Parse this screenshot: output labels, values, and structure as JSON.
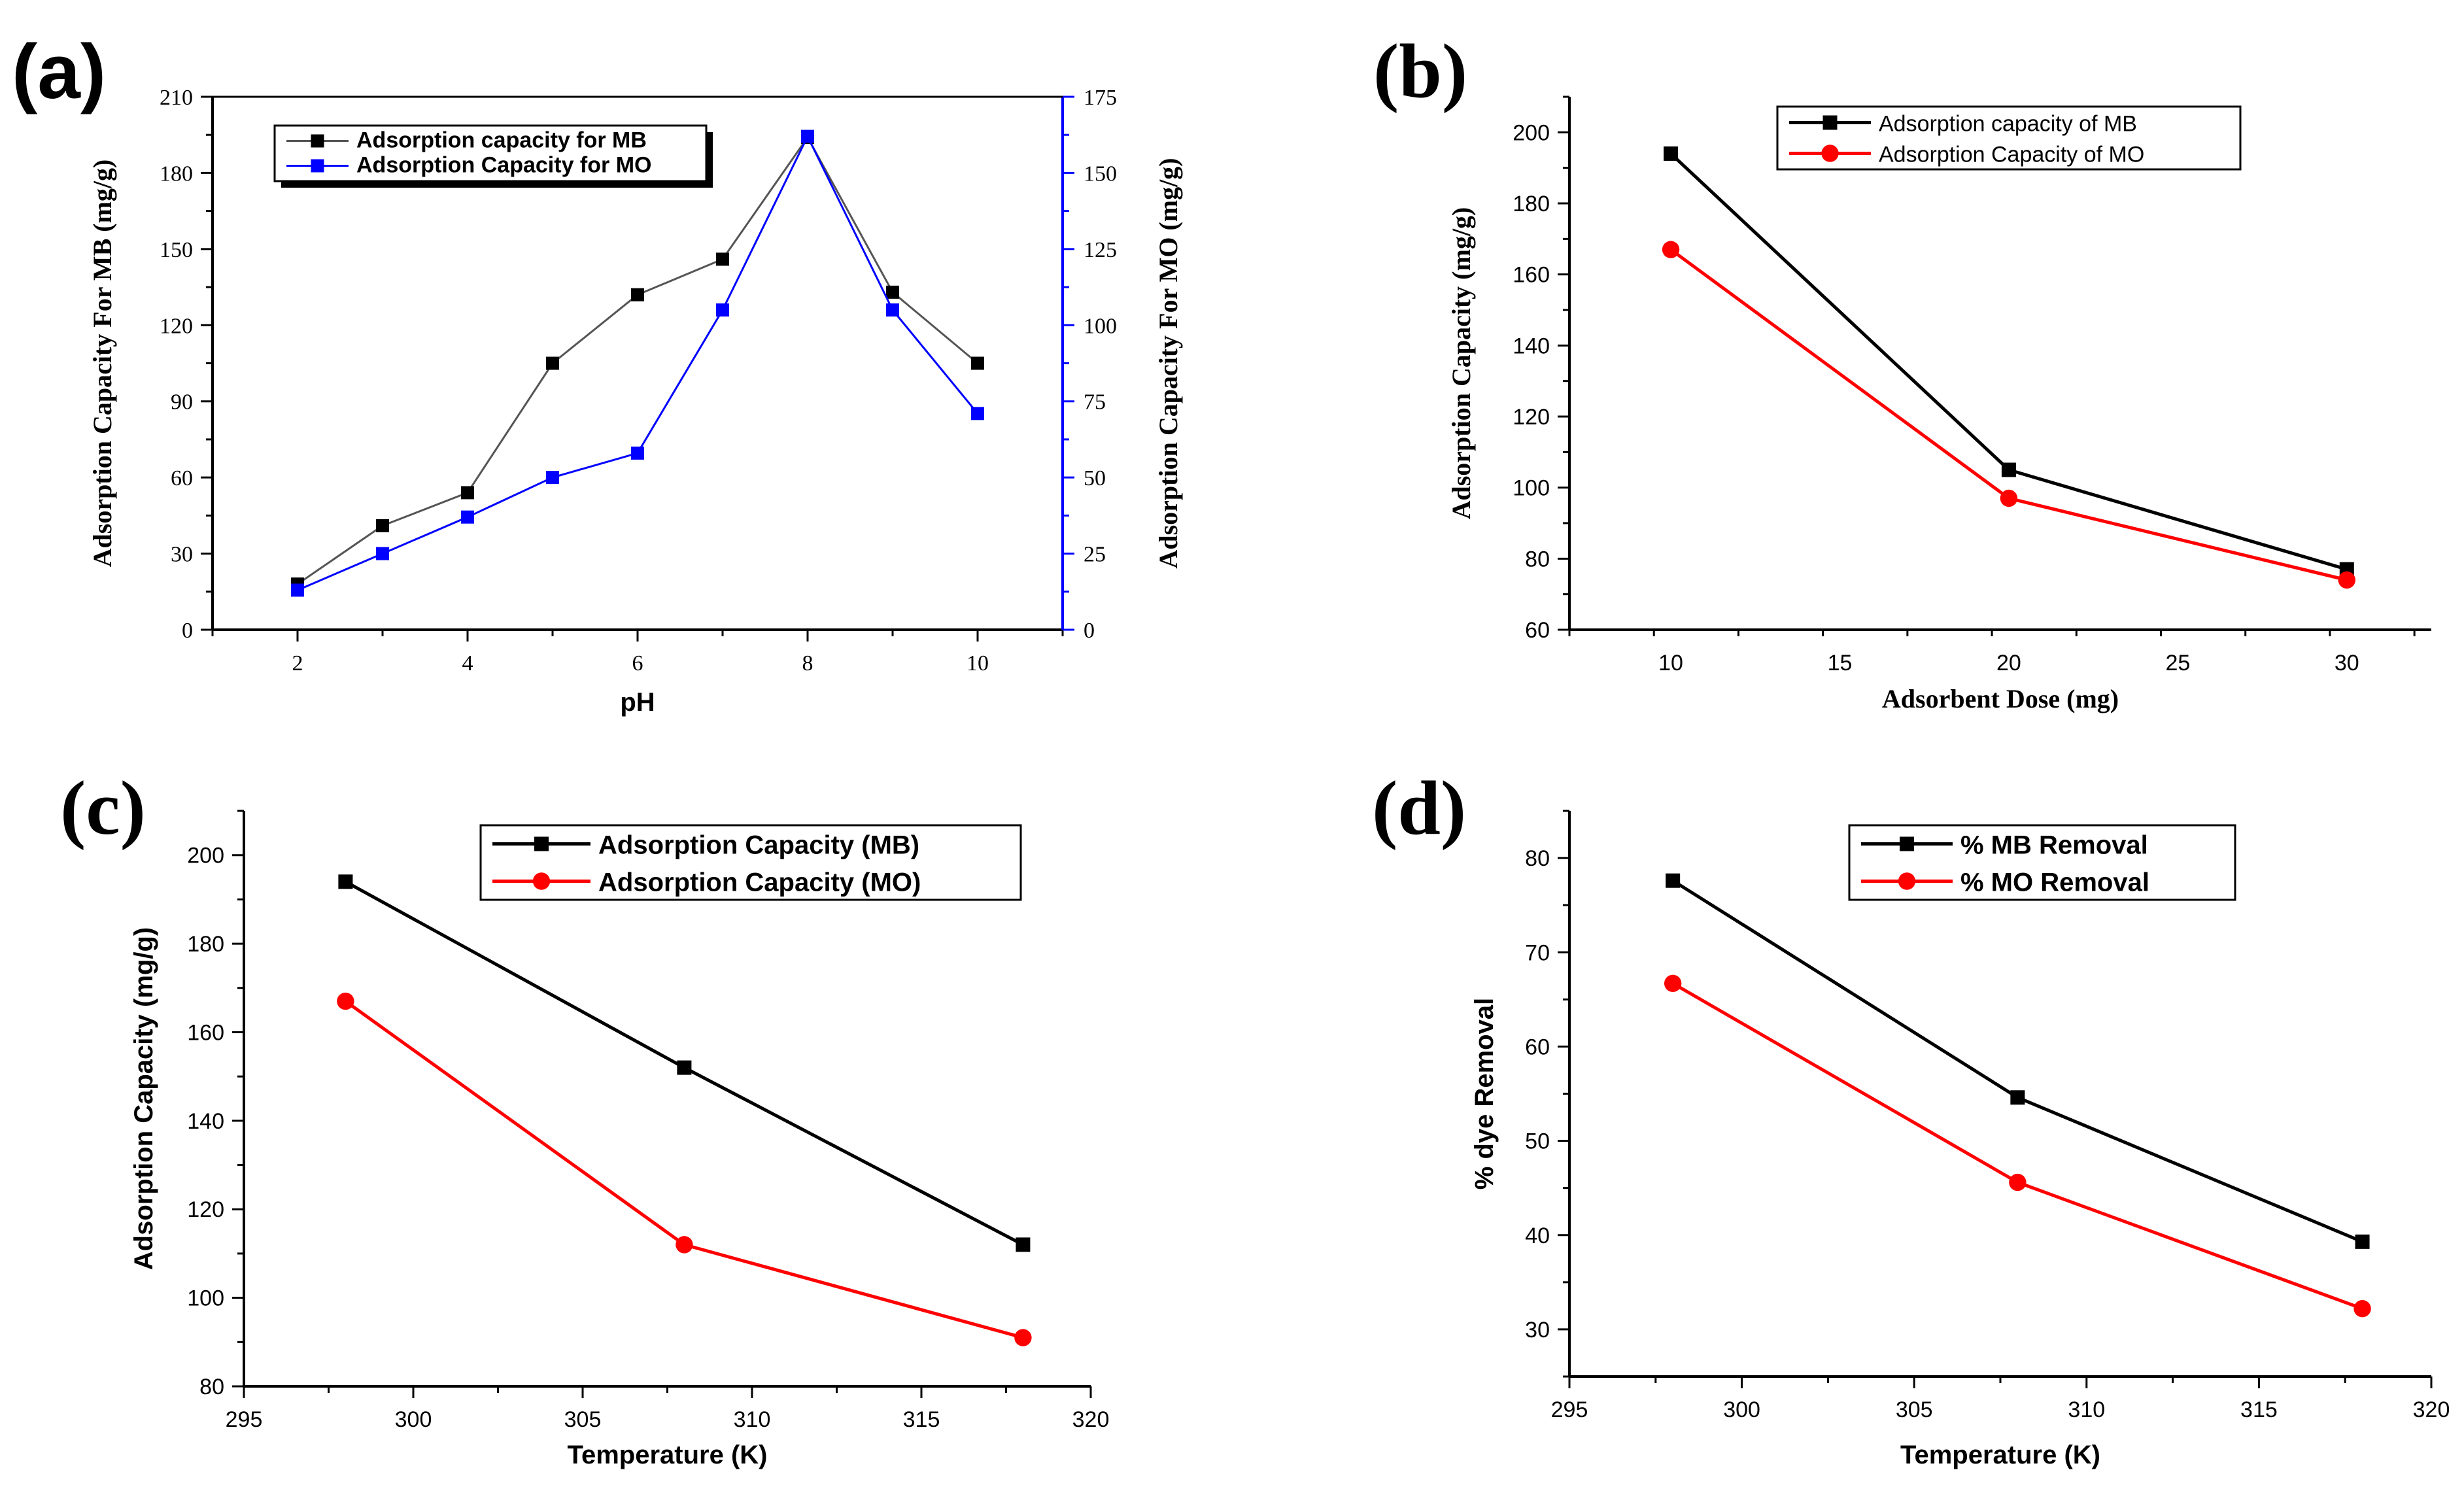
{
  "chart_data": [
    {
      "panel": "(a)",
      "type": "line",
      "x": [
        2,
        3,
        4,
        5,
        6,
        7,
        8,
        9,
        10
      ],
      "xlabel": "pH",
      "xlim": [
        1,
        11
      ],
      "xticks": [
        2,
        4,
        6,
        8,
        10
      ],
      "ylabel_left": "Adsorption Capacity For  MB (mg/g)",
      "ylim_left": [
        0,
        210
      ],
      "yticks_left": [
        0,
        30,
        60,
        90,
        120,
        150,
        180,
        210
      ],
      "ylabel_right": "Adsorption Capacity For MO (mg/g)",
      "ylim_right": [
        0,
        175
      ],
      "yticks_right": [
        0,
        25,
        50,
        75,
        100,
        125,
        150,
        175
      ],
      "legend_position": "top-left",
      "series": [
        {
          "name": "Adsorption capacity for MB",
          "axis": "left",
          "color": "#000000",
          "marker": "square",
          "values": [
            18,
            41,
            54,
            105,
            132,
            146,
            194,
            133,
            105
          ]
        },
        {
          "name": "Adsorption Capacity for MO",
          "axis": "right",
          "color": "#0000ff",
          "marker": "square",
          "values": [
            13,
            25,
            37,
            50,
            58,
            105,
            162,
            105,
            71
          ]
        }
      ]
    },
    {
      "panel": "(b)",
      "type": "line",
      "x": [
        10,
        20,
        30
      ],
      "xlabel": "Adsorbent Dose (mg)",
      "xlim": [
        7,
        32.5
      ],
      "xticks": [
        10,
        15,
        20,
        25,
        30
      ],
      "ylabel": "Adsorption Capacity (mg/g)",
      "ylim": [
        60,
        210
      ],
      "yticks": [
        60,
        80,
        100,
        120,
        140,
        160,
        180,
        200
      ],
      "legend_position": "top-center",
      "series": [
        {
          "name": "Adsorption capacity of MB",
          "color": "#000000",
          "marker": "square",
          "values": [
            194,
            105,
            77
          ]
        },
        {
          "name": "Adsorption Capacity of MO",
          "color": "#ff0000",
          "marker": "circle",
          "values": [
            167,
            97,
            74
          ]
        }
      ]
    },
    {
      "panel": "(c)",
      "type": "line",
      "x": [
        298,
        308,
        318
      ],
      "xlabel": "Temperature (K)",
      "xlim": [
        295,
        320
      ],
      "xticks": [
        295,
        300,
        305,
        310,
        315,
        320
      ],
      "ylabel": "Adsorption Capacity (mg/g)",
      "ylim": [
        80,
        210
      ],
      "yticks": [
        80,
        100,
        120,
        140,
        160,
        180,
        200
      ],
      "legend_position": "top-right",
      "series": [
        {
          "name": "Adsorption Capacity (MB)",
          "color": "#000000",
          "marker": "square",
          "values": [
            194,
            152,
            112
          ]
        },
        {
          "name": "Adsorption Capacity (MO)",
          "color": "#ff0000",
          "marker": "circle",
          "values": [
            167,
            112,
            91
          ]
        }
      ]
    },
    {
      "panel": "(d)",
      "type": "line",
      "x": [
        298,
        308,
        318
      ],
      "xlabel": "Temperature (K)",
      "xlim": [
        295,
        320
      ],
      "xticks": [
        295,
        300,
        305,
        310,
        315,
        320
      ],
      "ylabel": "% dye Removal",
      "ylim": [
        25,
        85
      ],
      "yticks": [
        30,
        40,
        50,
        60,
        70,
        80
      ],
      "legend_position": "top-center",
      "series": [
        {
          "name": "% MB Removal",
          "color": "#000000",
          "marker": "square",
          "values": [
            77.6,
            54.6,
            39.3
          ]
        },
        {
          "name": "% MO Removal",
          "color": "#ff0000",
          "marker": "circle",
          "values": [
            66.7,
            45.6,
            32.2
          ]
        }
      ]
    }
  ]
}
